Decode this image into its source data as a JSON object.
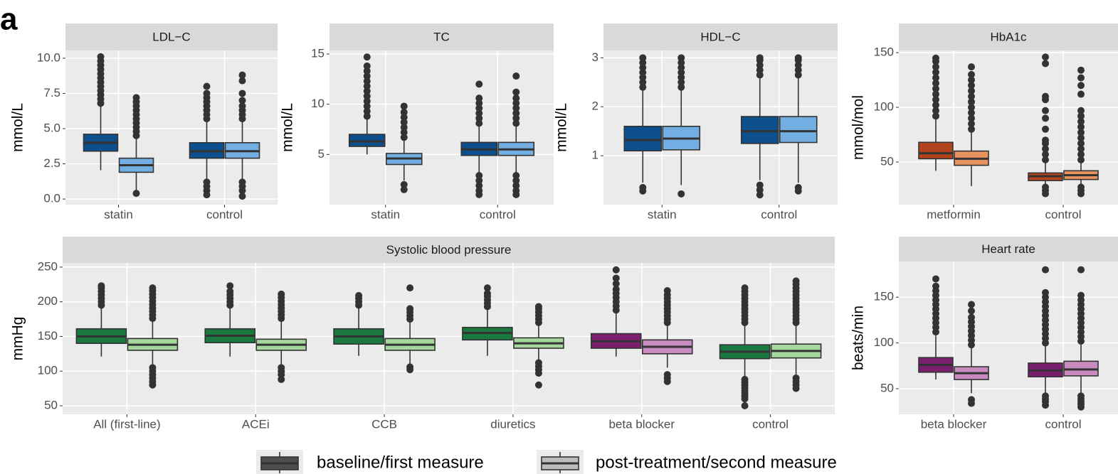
{
  "panel_label": "a",
  "legend": {
    "items": [
      {
        "label": "baseline/first measure",
        "color": "#4d4d4d"
      },
      {
        "label": "post-treatment/second measure",
        "color": "#bdbdbd"
      }
    ]
  },
  "chart_data": [
    {
      "type": "box",
      "title": "LDL−C",
      "y_label": "mmol/L",
      "ylim": [
        -0.4,
        10.55
      ],
      "yticks": [
        {
          "value": 0,
          "label": "0.0"
        },
        2.5,
        {
          "value": 5,
          "label": "5.0"
        },
        7.5,
        {
          "value": 10,
          "label": "10.0"
        }
      ],
      "categories": [
        "statin",
        "control"
      ],
      "series": [
        {
          "colors": [
            "#0c4f8c",
            "#0c4f8c"
          ],
          "boxes": [
            {
              "whisker_low": 2.05,
              "q1": 3.4,
              "median": 4.0,
              "q3": 4.6,
              "whisker_high": 6.7,
              "outliers": [
                6.8,
                7.1,
                7.4,
                7.7,
                8.0,
                8.3,
                8.6,
                8.9,
                9.2,
                9.5,
                9.8,
                10.1
              ]
            },
            {
              "whisker_low": 1.3,
              "q1": 2.9,
              "median": 3.4,
              "q3": 4.0,
              "whisker_high": 5.6,
              "outliers": [
                5.7,
                6.0,
                6.3,
                6.6,
                6.9,
                7.2,
                7.5,
                8.0,
                1.2,
                0.9,
                0.6,
                0.3
              ]
            }
          ]
        },
        {
          "colors": [
            "#73aee2",
            "#73aee2"
          ],
          "boxes": [
            {
              "whisker_low": 0.6,
              "q1": 1.9,
              "median": 2.4,
              "q3": 2.9,
              "whisker_high": 4.4,
              "outliers": [
                4.5,
                4.8,
                5.1,
                5.4,
                5.7,
                6.0,
                6.3,
                6.6,
                6.9,
                7.2,
                0.4
              ]
            },
            {
              "whisker_low": 1.3,
              "q1": 2.9,
              "median": 3.4,
              "q3": 4.0,
              "whisker_high": 5.6,
              "outliers": [
                5.7,
                6.0,
                6.3,
                6.6,
                7.0,
                7.5,
                8.4,
                8.8,
                1.2,
                0.9,
                0.6,
                0.2
              ]
            }
          ]
        }
      ]
    },
    {
      "type": "box",
      "title": "TC",
      "y_label": "mmol/L",
      "ylim": [
        0,
        15.35
      ],
      "yticks": [
        5,
        10,
        15
      ],
      "categories": [
        "statin",
        "control"
      ],
      "series": [
        {
          "colors": [
            "#0c4f8c",
            "#0c4f8c"
          ],
          "boxes": [
            {
              "whisker_low": 5.0,
              "q1": 5.8,
              "median": 6.3,
              "q3": 7.0,
              "whisker_high": 8.7,
              "outliers": [
                8.8,
                9.3,
                9.8,
                10.3,
                10.8,
                11.3,
                11.8,
                12.3,
                12.8,
                13.3,
                13.8,
                14.7
              ]
            },
            {
              "whisker_low": 3.0,
              "q1": 4.9,
              "median": 5.5,
              "q3": 6.2,
              "whisker_high": 8.0,
              "outliers": [
                8.1,
                8.6,
                9.1,
                9.6,
                10.1,
                10.6,
                12.0,
                2.9,
                2.4,
                1.9,
                1.4,
                1.0
              ]
            }
          ]
        },
        {
          "colors": [
            "#73aee2",
            "#73aee2"
          ],
          "boxes": [
            {
              "whisker_low": 2.4,
              "q1": 4.0,
              "median": 4.6,
              "q3": 5.1,
              "whisker_high": 6.6,
              "outliers": [
                6.7,
                7.2,
                7.7,
                8.2,
                8.7,
                9.2,
                9.8,
                2.0,
                1.5
              ]
            },
            {
              "whisker_low": 3.0,
              "q1": 4.9,
              "median": 5.5,
              "q3": 6.2,
              "whisker_high": 8.0,
              "outliers": [
                8.1,
                8.6,
                9.1,
                9.6,
                10.1,
                10.6,
                11.2,
                12.8,
                2.9,
                2.4,
                1.9,
                1.4,
                1.0
              ]
            }
          ]
        }
      ]
    },
    {
      "type": "box",
      "title": "HDL−C",
      "y_label": "mmol/L",
      "ylim": [
        0,
        3.15
      ],
      "yticks": [
        1,
        2,
        3
      ],
      "categories": [
        "statin",
        "control"
      ],
      "series": [
        {
          "colors": [
            "#0c4f8c",
            "#0c4f8c"
          ],
          "boxes": [
            {
              "whisker_low": 0.45,
              "q1": 1.1,
              "median": 1.32,
              "q3": 1.6,
              "whisker_high": 2.35,
              "outliers": [
                2.4,
                2.5,
                2.6,
                2.7,
                2.8,
                2.9,
                3.0,
                0.35,
                0.28
              ]
            },
            {
              "whisker_low": 0.5,
              "q1": 1.25,
              "median": 1.5,
              "q3": 1.8,
              "whisker_high": 2.6,
              "outliers": [
                2.65,
                2.75,
                2.85,
                2.95,
                3.0,
                0.4,
                0.3,
                0.2
              ]
            }
          ]
        },
        {
          "colors": [
            "#73aee2",
            "#73aee2"
          ],
          "boxes": [
            {
              "whisker_low": 0.4,
              "q1": 1.12,
              "median": 1.35,
              "q3": 1.6,
              "whisker_high": 2.35,
              "outliers": [
                2.4,
                2.5,
                2.6,
                2.7,
                2.8,
                2.9,
                3.0,
                0.22
              ]
            },
            {
              "whisker_low": 0.45,
              "q1": 1.27,
              "median": 1.5,
              "q3": 1.8,
              "whisker_high": 2.6,
              "outliers": [
                2.65,
                2.75,
                2.85,
                2.95,
                3.0,
                0.35,
                0.28
              ]
            }
          ]
        }
      ]
    },
    {
      "type": "box",
      "title": "HbA1c",
      "y_label": "mmol/mol",
      "ylim": [
        11,
        152
      ],
      "yticks": [
        50,
        100,
        150
      ],
      "categories": [
        "metformin",
        "control"
      ],
      "series": [
        {
          "colors": [
            "#b3431f",
            "#b3431f"
          ],
          "boxes": [
            {
              "whisker_low": 42,
              "q1": 53,
              "median": 58,
              "q3": 68,
              "whisker_high": 90,
              "outliers": [
                92,
                97,
                102,
                107,
                112,
                117,
                122,
                127,
                132,
                137,
                142,
                145
              ]
            },
            {
              "whisker_low": 28,
              "q1": 33,
              "median": 37,
              "q3": 40,
              "whisker_high": 50,
              "outliers": [
                52,
                57,
                62,
                67,
                70,
                80,
                90,
                97,
                107,
                110,
                140,
                146,
                27,
                24,
                21
              ]
            }
          ]
        },
        {
          "colors": [
            "#e8925e",
            "#e8925e"
          ],
          "boxes": [
            {
              "whisker_low": 28,
              "q1": 47,
              "median": 53,
              "q3": 60,
              "whisker_high": 78,
              "outliers": [
                80,
                85,
                90,
                95,
                100,
                105,
                110,
                115,
                120,
                125,
                130,
                137
              ]
            },
            {
              "whisker_low": 28,
              "q1": 34,
              "median": 38,
              "q3": 42,
              "whisker_high": 50,
              "outliers": [
                52,
                57,
                62,
                67,
                72,
                77,
                82,
                87,
                92,
                97,
                112,
                120,
                127,
                134,
                27,
                24,
                21
              ]
            }
          ]
        }
      ]
    },
    {
      "type": "box",
      "title": "Systolic blood pressure",
      "y_label": "mmHg",
      "ylim": [
        37.7,
        256
      ],
      "yticks": [
        50,
        100,
        150,
        200,
        250
      ],
      "categories": [
        "All (first-line)",
        "ACEi",
        "CCB",
        "diuretics",
        "beta blocker",
        "control"
      ],
      "series": [
        {
          "colors": [
            "#19793f",
            "#19793f",
            "#19793f",
            "#19793f",
            "#7a1f6e",
            "#19793f"
          ],
          "boxes": [
            {
              "whisker_low": 121,
              "q1": 140,
              "median": 150,
              "q3": 161,
              "whisker_high": 192,
              "outliers": [
                195,
                200,
                205,
                210,
                215,
                220,
                223
              ]
            },
            {
              "whisker_low": 121,
              "q1": 141,
              "median": 151,
              "q3": 161,
              "whisker_high": 192,
              "outliers": [
                195,
                200,
                205,
                210,
                215,
                223
              ]
            },
            {
              "whisker_low": 122,
              "q1": 139,
              "median": 150,
              "q3": 161,
              "whisker_high": 192,
              "outliers": [
                195,
                200,
                205,
                209
              ]
            },
            {
              "whisker_low": 122,
              "q1": 145,
              "median": 155,
              "q3": 163,
              "whisker_high": 190,
              "outliers": [
                193,
                198,
                203,
                208,
                212,
                220
              ]
            },
            {
              "whisker_low": 121,
              "q1": 133,
              "median": 143,
              "q3": 154,
              "whisker_high": 185,
              "outliers": [
                188,
                194,
                200,
                206,
                212,
                218,
                226,
                234,
                246
              ]
            },
            {
              "whisker_low": 92,
              "q1": 118,
              "median": 128,
              "q3": 138,
              "whisker_high": 168,
              "outliers": [
                170,
                175,
                180,
                185,
                190,
                195,
                200,
                205,
                210,
                215,
                220,
                88,
                84,
                80,
                76,
                72,
                68,
                64,
                60,
                50
              ]
            }
          ]
        },
        {
          "colors": [
            "#a5d69b",
            "#a5d69b",
            "#a5d69b",
            "#a5d69b",
            "#c98abf",
            "#a5d69b"
          ],
          "boxes": [
            {
              "whisker_low": 110,
              "q1": 130,
              "median": 138,
              "q3": 147,
              "whisker_high": 173,
              "outliers": [
                176,
                181,
                186,
                191,
                196,
                201,
                206,
                211,
                216,
                220,
                105,
                100,
                95,
                90,
                85,
                80
              ]
            },
            {
              "whisker_low": 110,
              "q1": 130,
              "median": 138,
              "q3": 146,
              "whisker_high": 173,
              "outliers": [
                176,
                181,
                186,
                191,
                196,
                201,
                206,
                211,
                105,
                100,
                95,
                88
              ]
            },
            {
              "whisker_low": 110,
              "q1": 130,
              "median": 138,
              "q3": 147,
              "whisker_high": 172,
              "outliers": [
                175,
                180,
                185,
                190,
                220,
                106,
                102
              ]
            },
            {
              "whisker_low": 114,
              "q1": 133,
              "median": 140,
              "q3": 148,
              "whisker_high": 168,
              "outliers": [
                170,
                175,
                180,
                185,
                190,
                193,
                112,
                107,
                102,
                97,
                80
              ]
            },
            {
              "whisker_low": 105,
              "q1": 125,
              "median": 135,
              "q3": 145,
              "whisker_high": 167,
              "outliers": [
                170,
                175,
                180,
                185,
                190,
                195,
                200,
                205,
                210,
                216,
                95,
                90,
                85
              ]
            },
            {
              "whisker_low": 92,
              "q1": 119,
              "median": 129,
              "q3": 139,
              "whisker_high": 168,
              "outliers": [
                170,
                175,
                180,
                185,
                190,
                195,
                200,
                205,
                210,
                215,
                220,
                225,
                230,
                90,
                85,
                80,
                75
              ]
            }
          ]
        }
      ]
    },
    {
      "type": "box",
      "title": "Heart rate",
      "y_label": "beats/min",
      "ylim": [
        22,
        189
      ],
      "yticks": [
        50,
        100,
        150
      ],
      "categories": [
        "beta blocker",
        "control"
      ],
      "series": [
        {
          "colors": [
            "#7a1f6e",
            "#7a1f6e"
          ],
          "boxes": [
            {
              "whisker_low": 60,
              "q1": 68,
              "median": 76,
              "q3": 84,
              "whisker_high": 108,
              "outliers": [
                112,
                117,
                122,
                127,
                132,
                137,
                142,
                147,
                152,
                157,
                162,
                170
              ]
            },
            {
              "whisker_low": 45,
              "q1": 63,
              "median": 70,
              "q3": 78,
              "whisker_high": 97,
              "outliers": [
                100,
                105,
                110,
                115,
                120,
                125,
                130,
                135,
                140,
                145,
                150,
                155,
                180,
                42,
                39,
                36,
                32
              ]
            }
          ]
        },
        {
          "colors": [
            "#c98abf",
            "#c98abf"
          ],
          "boxes": [
            {
              "whisker_low": 45,
              "q1": 60,
              "median": 67,
              "q3": 74,
              "whisker_high": 95,
              "outliers": [
                98,
                103,
                108,
                113,
                118,
                123,
                128,
                135,
                142,
                38,
                34
              ]
            },
            {
              "whisker_low": 45,
              "q1": 64,
              "median": 71,
              "q3": 80,
              "whisker_high": 99,
              "outliers": [
                102,
                107,
                112,
                117,
                122,
                127,
                132,
                137,
                142,
                147,
                152,
                180,
                42,
                39,
                36,
                33,
                30
              ]
            }
          ]
        }
      ]
    }
  ]
}
